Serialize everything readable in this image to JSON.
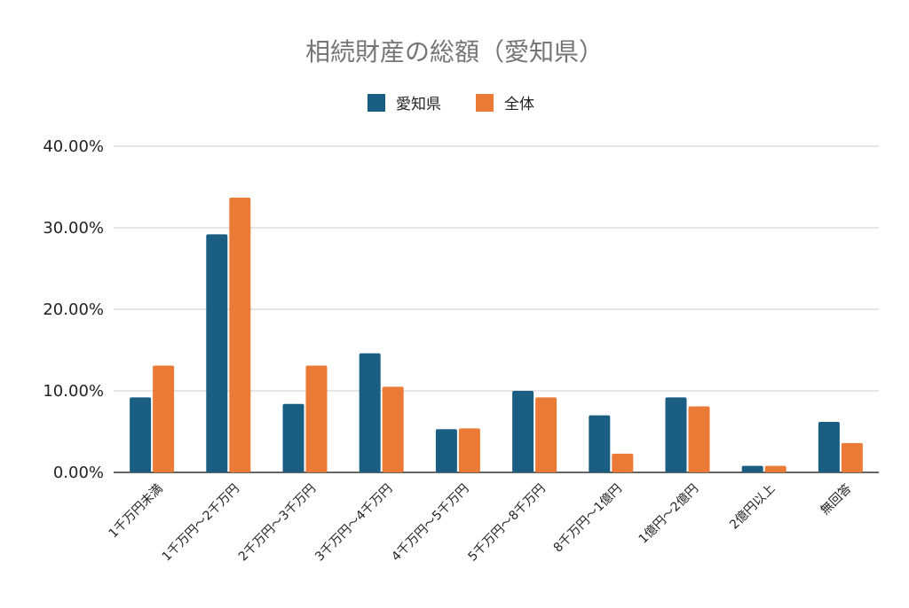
{
  "chart_data": {
    "type": "bar",
    "title": "相続財産の総額（愛知県）",
    "categories": [
      "1千万円未満",
      "1千万円～2千万円",
      "2千万円～3千万円",
      "3千万円～4千万円",
      "4千万円～5千万円",
      "5千万円～8千万円",
      "8千万円～1億円",
      "1億円～2億円",
      "2億円以上",
      "無回答"
    ],
    "series": [
      {
        "name": "愛知県",
        "color": "#1b5e84",
        "values": [
          9.2,
          29.2,
          8.4,
          14.6,
          5.3,
          10.0,
          7.0,
          9.2,
          0.8,
          6.2
        ]
      },
      {
        "name": "全体",
        "color": "#eb7a36",
        "values": [
          13.1,
          33.7,
          13.1,
          10.5,
          5.4,
          9.2,
          2.3,
          8.1,
          0.8,
          3.6
        ]
      }
    ],
    "ylim": [
      0,
      40
    ],
    "yticks": [
      "0.00%",
      "10.00%",
      "20.00%",
      "30.00%",
      "40.00%"
    ],
    "legend_position": "top",
    "grid": true
  }
}
